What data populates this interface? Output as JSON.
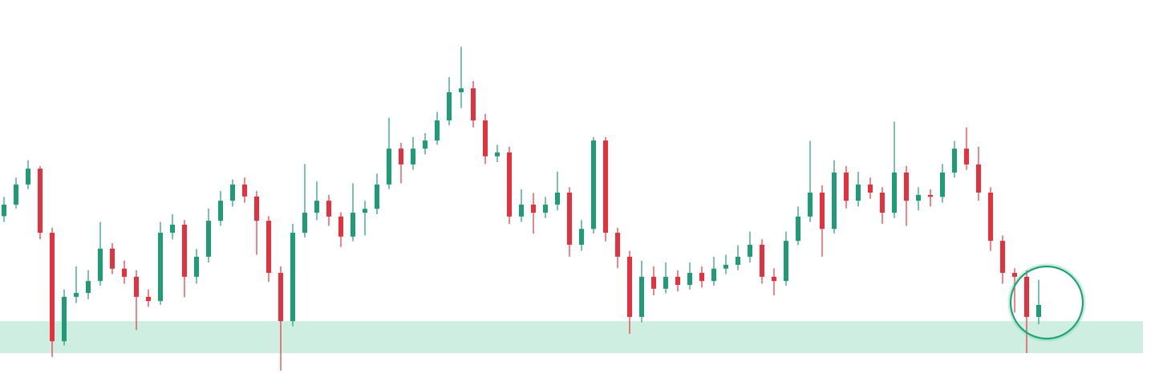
{
  "chart_data": {
    "type": "candlestick",
    "ylim": [
      0,
      100
    ],
    "up_color": "#1f9b78",
    "down_color": "#e2323f",
    "zone": {
      "low": 8.5,
      "high": 16.8,
      "color": "#cdeee0"
    },
    "open": [
      44.0,
      47.0,
      52.2,
      56.3,
      39.7,
      11.6,
      23.1,
      24.1,
      27.2,
      35.6,
      30.4,
      28.3,
      23.1,
      22.0,
      39.7,
      41.8,
      28.3,
      33.5,
      42.8,
      48.0,
      52.2,
      49.1,
      42.8,
      29.3,
      16.8,
      39.7,
      44.9,
      48.0,
      43.9,
      38.7,
      44.9,
      45.9,
      52.2,
      61.5,
      57.4,
      61.5,
      63.6,
      68.8,
      76.1,
      77.1,
      68.8,
      59.5,
      60.5,
      43.9,
      47.0,
      44.9,
      47.0,
      50.1,
      36.6,
      40.7,
      63.6,
      39.7,
      33.5,
      17.9,
      28.3,
      25.2,
      28.3,
      26.2,
      29.3,
      27.2,
      30.4,
      31.4,
      33.5,
      36.6,
      28.3,
      27.2,
      37.6,
      43.9,
      50.1,
      40.7,
      55.3,
      48.0,
      52.2,
      50.1,
      44.9,
      55.3,
      48.0,
      49.5,
      49.0,
      55.3,
      61.5,
      57.4,
      50.1,
      37.6,
      29.3,
      28.3,
      17.9
    ],
    "high": [
      49.0,
      54.0,
      58.5,
      57.0,
      41.0,
      25.0,
      31.0,
      30.0,
      42.5,
      37.0,
      32.5,
      30.0,
      25.0,
      42.5,
      44.5,
      43.0,
      35.5,
      46.0,
      50.5,
      53.5,
      54.0,
      50.5,
      44.0,
      31.0,
      42.0,
      57.5,
      53.0,
      49.5,
      45.0,
      52.5,
      48.0,
      55.0,
      69.5,
      63.0,
      64.5,
      65.5,
      71.0,
      80.0,
      87.9,
      79.0,
      70.5,
      62.5,
      62.0,
      51.0,
      50.0,
      49.0,
      55.5,
      51.5,
      43.0,
      64.5,
      64.5,
      41.0,
      35.0,
      32.5,
      31.0,
      32.0,
      30.0,
      32.0,
      31.0,
      33.5,
      34.0,
      36.5,
      40.0,
      38.0,
      30.5,
      40.0,
      46.5,
      63.5,
      52.0,
      58.5,
      57.0,
      55.5,
      54.0,
      51.5,
      68.5,
      57.0,
      51.5,
      51.0,
      57.5,
      63.5,
      67.0,
      62.0,
      51.5,
      39.0,
      30.5,
      30.0,
      27.5
    ],
    "low": [
      42.5,
      46.0,
      51.0,
      38.0,
      7.5,
      10.5,
      21.5,
      22.5,
      26.0,
      29.0,
      26.5,
      14.5,
      20.5,
      21.0,
      38.0,
      23.0,
      26.5,
      32.0,
      41.5,
      46.5,
      47.5,
      34.0,
      27.0,
      4.0,
      15.5,
      38.5,
      43.0,
      41.5,
      36.0,
      37.5,
      39.0,
      44.5,
      51.0,
      52.5,
      56.0,
      60.0,
      62.5,
      67.5,
      72.0,
      67.0,
      57.5,
      58.0,
      42.0,
      42.5,
      39.5,
      43.5,
      45.5,
      33.5,
      35.0,
      39.5,
      37.5,
      30.5,
      13.5,
      16.5,
      23.5,
      24.0,
      24.5,
      25.0,
      25.5,
      26.0,
      29.0,
      30.0,
      32.0,
      26.5,
      23.5,
      26.0,
      36.5,
      42.5,
      33.5,
      39.5,
      46.0,
      46.5,
      48.5,
      42.0,
      43.5,
      41.5,
      45.5,
      46.5,
      47.5,
      54.0,
      56.0,
      48.0,
      35.0,
      26.5,
      19.0,
      8.5,
      16.0
    ],
    "close": [
      47.0,
      52.2,
      56.3,
      39.7,
      11.6,
      23.1,
      24.1,
      27.2,
      35.6,
      30.4,
      28.3,
      23.1,
      22.0,
      39.7,
      41.8,
      28.3,
      33.5,
      42.8,
      48.0,
      52.2,
      49.1,
      42.8,
      29.3,
      16.8,
      39.7,
      44.9,
      48.0,
      43.9,
      38.7,
      44.9,
      45.9,
      52.2,
      61.5,
      57.4,
      61.5,
      63.6,
      68.8,
      76.1,
      77.1,
      68.8,
      59.5,
      60.5,
      43.9,
      47.0,
      44.9,
      47.0,
      50.1,
      36.6,
      40.7,
      63.6,
      39.7,
      33.5,
      17.9,
      28.3,
      25.2,
      28.3,
      26.2,
      29.3,
      27.2,
      30.4,
      31.4,
      33.5,
      36.6,
      28.3,
      27.2,
      37.6,
      43.9,
      50.1,
      40.7,
      55.3,
      48.0,
      52.2,
      50.1,
      44.9,
      55.3,
      48.0,
      49.5,
      49.0,
      55.3,
      61.5,
      57.4,
      50.1,
      37.6,
      29.3,
      28.3,
      17.9,
      21.0
    ]
  }
}
